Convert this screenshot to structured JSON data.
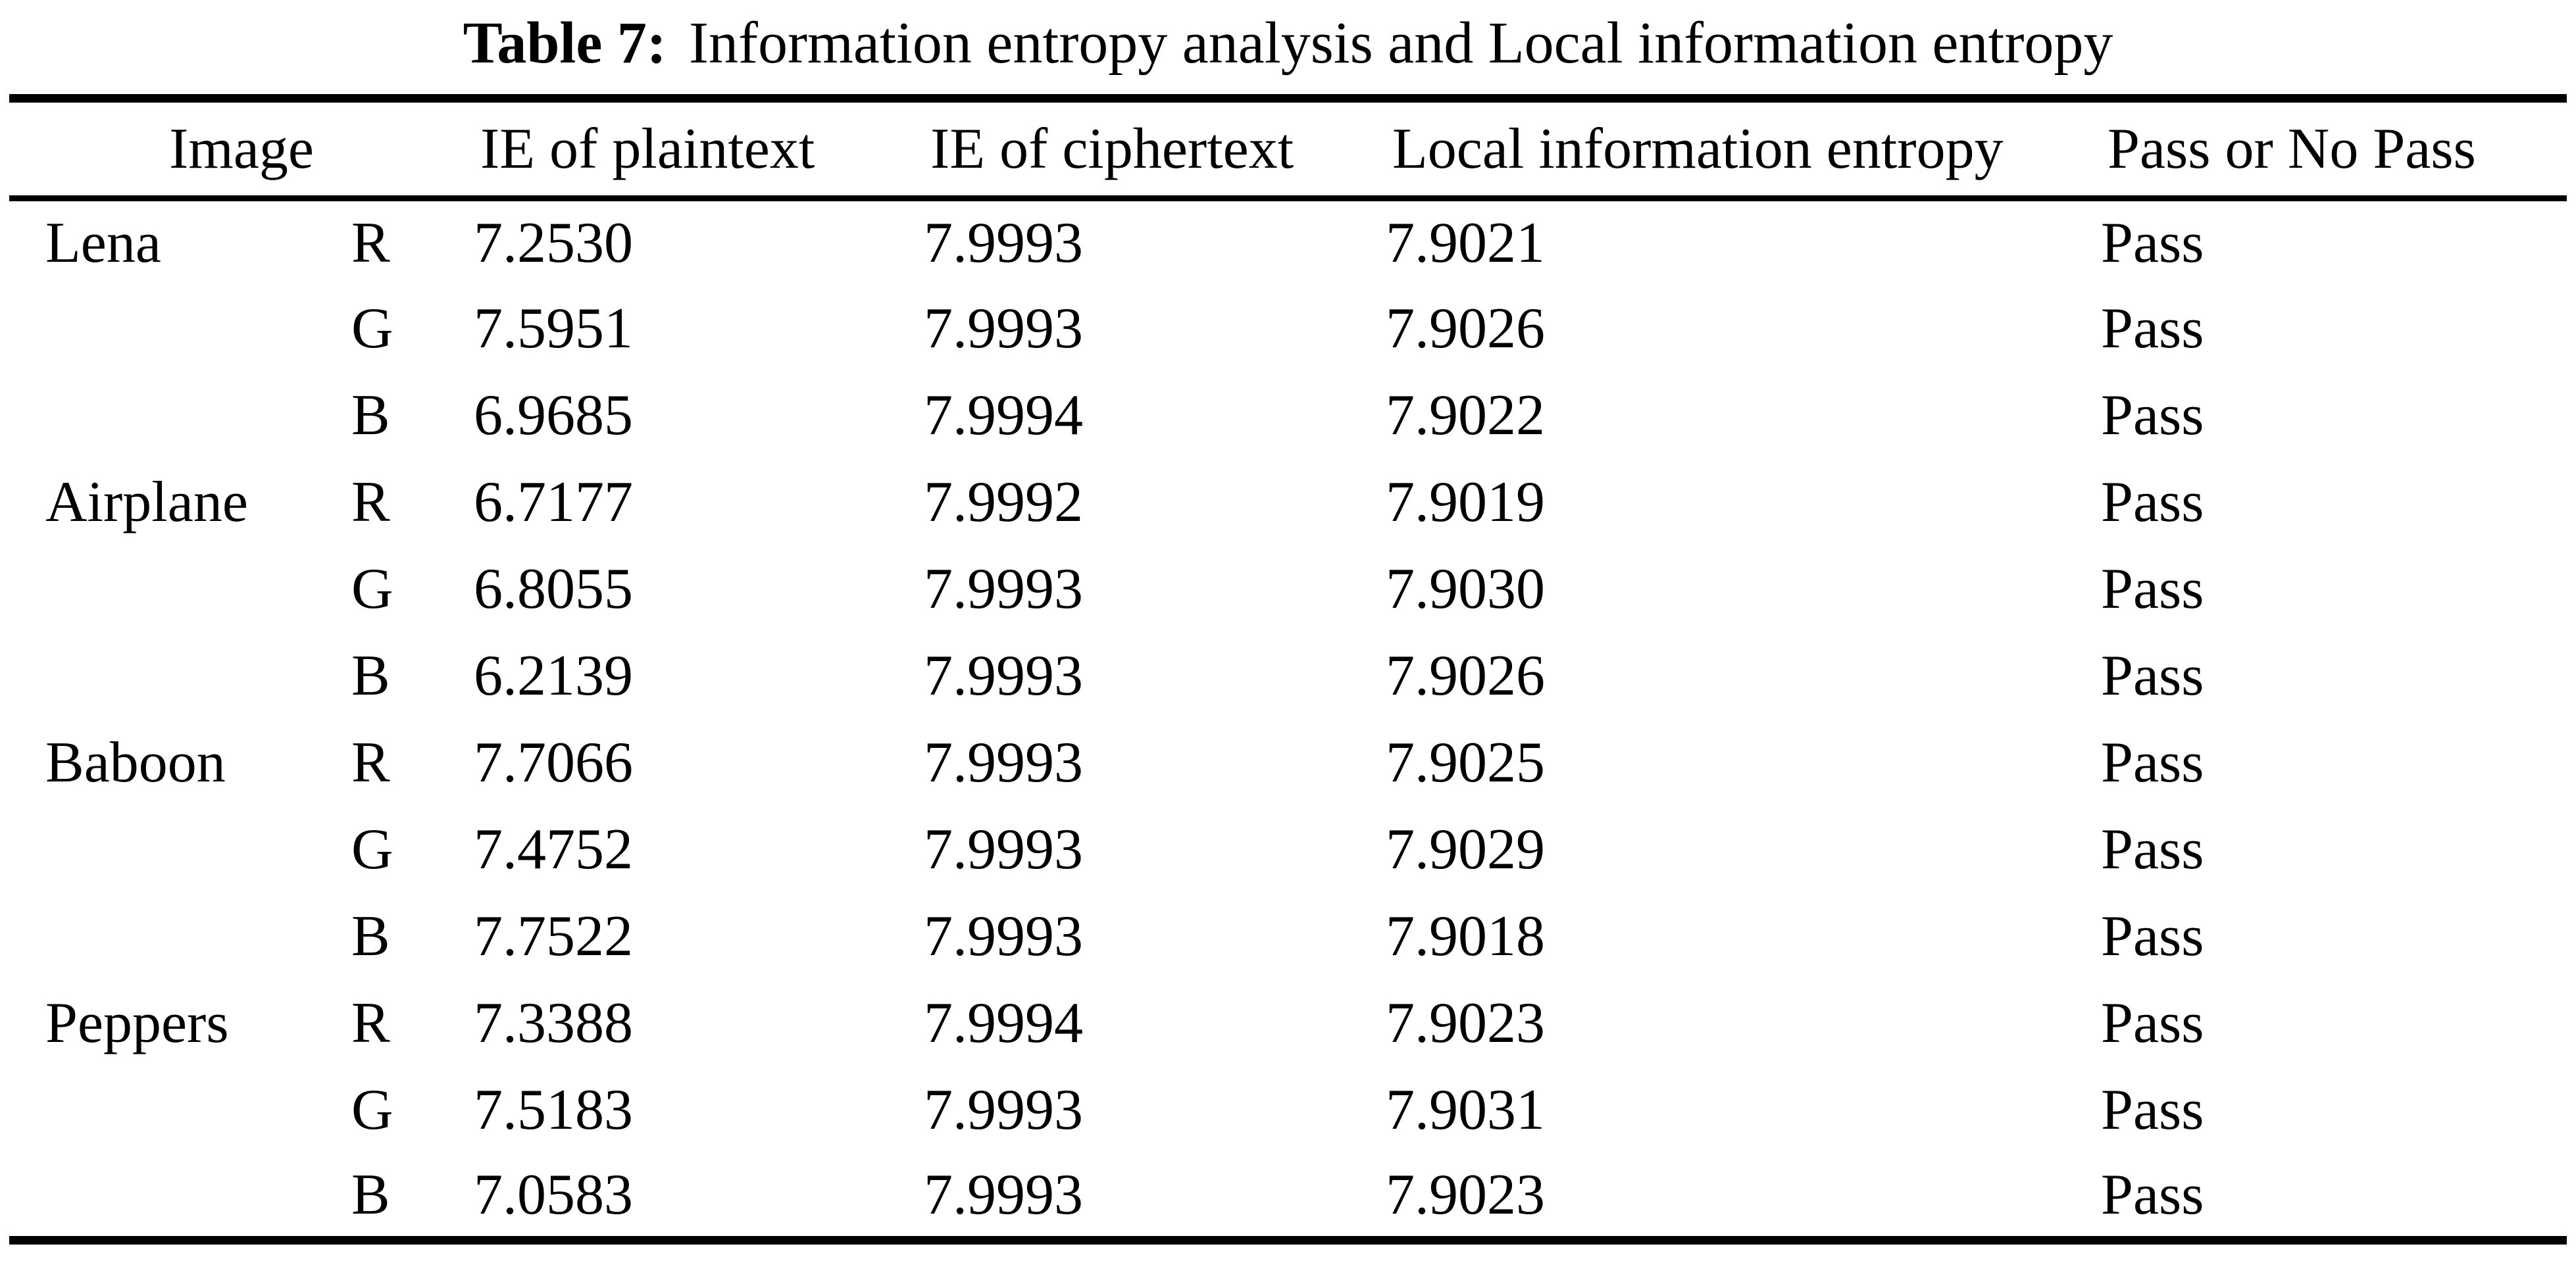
{
  "caption": {
    "label": "Table 7:",
    "text": "Information entropy analysis and Local information entropy"
  },
  "table": {
    "headers": {
      "image": "Image",
      "ie_plain": "IE of plaintext",
      "ie_cipher": "IE of ciphertext",
      "local": "Local information entropy",
      "pass": "Pass or No Pass"
    },
    "rows": [
      {
        "image": "Lena",
        "channel": "R",
        "ie_plain": "7.2530",
        "ie_cipher": "7.9993",
        "local": "7.9021",
        "pass": "Pass"
      },
      {
        "image": "",
        "channel": "G",
        "ie_plain": "7.5951",
        "ie_cipher": "7.9993",
        "local": "7.9026",
        "pass": "Pass"
      },
      {
        "image": "",
        "channel": "B",
        "ie_plain": "6.9685",
        "ie_cipher": "7.9994",
        "local": "7.9022",
        "pass": "Pass"
      },
      {
        "image": "Airplane",
        "channel": "R",
        "ie_plain": "6.7177",
        "ie_cipher": "7.9992",
        "local": "7.9019",
        "pass": "Pass"
      },
      {
        "image": "",
        "channel": "G",
        "ie_plain": "6.8055",
        "ie_cipher": "7.9993",
        "local": "7.9030",
        "pass": "Pass"
      },
      {
        "image": "",
        "channel": "B",
        "ie_plain": "6.2139",
        "ie_cipher": "7.9993",
        "local": "7.9026",
        "pass": "Pass"
      },
      {
        "image": "Baboon",
        "channel": "R",
        "ie_plain": "7.7066",
        "ie_cipher": "7.9993",
        "local": "7.9025",
        "pass": "Pass"
      },
      {
        "image": "",
        "channel": "G",
        "ie_plain": "7.4752",
        "ie_cipher": "7.9993",
        "local": "7.9029",
        "pass": "Pass"
      },
      {
        "image": "",
        "channel": "B",
        "ie_plain": "7.7522",
        "ie_cipher": "7.9993",
        "local": "7.9018",
        "pass": "Pass"
      },
      {
        "image": "Peppers",
        "channel": "R",
        "ie_plain": "7.3388",
        "ie_cipher": "7.9994",
        "local": "7.9023",
        "pass": "Pass"
      },
      {
        "image": "",
        "channel": "G",
        "ie_plain": "7.5183",
        "ie_cipher": "7.9993",
        "local": "7.9031",
        "pass": "Pass"
      },
      {
        "image": "",
        "channel": "B",
        "ie_plain": "7.0583",
        "ie_cipher": "7.9993",
        "local": "7.9023",
        "pass": "Pass"
      }
    ]
  }
}
